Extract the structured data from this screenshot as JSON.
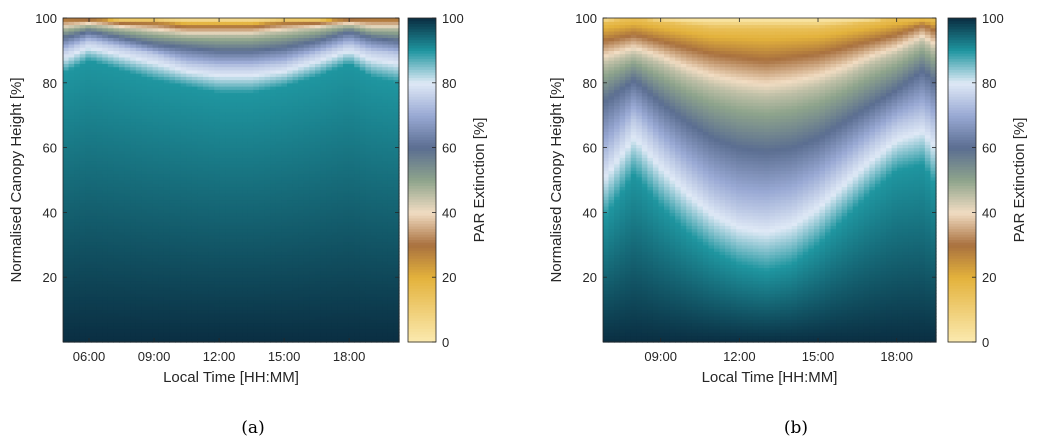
{
  "chart_data": [
    {
      "type": "heatmap",
      "caption": "(a)",
      "xlabel": "Local Time [HH:MM]",
      "ylabel": "Normalised Canopy Height [%]",
      "colorbar_label": "PAR Extinction [%]",
      "xlim_hours": [
        4.8,
        20.3
      ],
      "ylim": [
        0,
        100
      ],
      "clim": [
        0,
        100
      ],
      "x_ticks": [
        "06:00",
        "09:00",
        "12:00",
        "15:00",
        "18:00"
      ],
      "x_tick_hours": [
        6,
        9,
        12,
        15,
        18
      ],
      "y_ticks": [
        20,
        40,
        60,
        80,
        100
      ],
      "cbar_ticks": [
        0,
        20,
        40,
        60,
        80,
        100
      ],
      "isolines": [
        {
          "level": 90,
          "x_hours": [
            4.8,
            6,
            7.5,
            9,
            10.5,
            12,
            13.5,
            15,
            16.5,
            18,
            19,
            20.3
          ],
          "height": [
            83,
            87,
            84,
            81,
            79,
            77,
            77,
            79,
            82,
            86,
            82,
            80
          ]
        },
        {
          "level": 75,
          "x_hours": [
            4.8,
            6,
            7.5,
            9,
            10.5,
            12,
            13.5,
            15,
            16.5,
            18,
            19,
            20.3
          ],
          "height": [
            90,
            93,
            91,
            89,
            86,
            85,
            85,
            86,
            89,
            92,
            90,
            89
          ]
        },
        {
          "level": 60,
          "x_hours": [
            4.8,
            6,
            7.5,
            9,
            10.5,
            12,
            13.5,
            15,
            16.5,
            18,
            19,
            20.3
          ],
          "height": [
            94,
            96,
            94,
            92,
            91,
            90,
            90,
            91,
            93,
            96,
            94,
            93
          ]
        },
        {
          "level": 45,
          "x_hours": [
            4.8,
            6,
            7.5,
            9,
            10.5,
            12,
            13.5,
            15,
            16.5,
            18,
            19,
            20.3
          ],
          "height": [
            97,
            98,
            97,
            96,
            95,
            95,
            95,
            96,
            97,
            98,
            97,
            97
          ]
        },
        {
          "level": 25,
          "x_hours": [
            4.8,
            6,
            7.5,
            9,
            10.5,
            12,
            13.5,
            15,
            16.5,
            18,
            19,
            20.3
          ],
          "height": [
            100,
            100,
            99,
            99,
            98,
            98,
            98,
            99,
            99,
            100,
            100,
            100
          ]
        }
      ]
    },
    {
      "type": "heatmap",
      "caption": "(b)",
      "xlabel": "Local Time [HH:MM]",
      "ylabel": "Normalised Canopy Height [%]",
      "colorbar_label": "PAR Extinction [%]",
      "xlim_hours": [
        6.8,
        19.5
      ],
      "ylim": [
        0,
        100
      ],
      "clim": [
        0,
        100
      ],
      "x_ticks": [
        "09:00",
        "12:00",
        "15:00",
        "18:00"
      ],
      "x_tick_hours": [
        9,
        12,
        15,
        18
      ],
      "y_ticks": [
        20,
        40,
        60,
        80,
        100
      ],
      "cbar_ticks": [
        0,
        20,
        40,
        60,
        80,
        100
      ],
      "isolines": [
        {
          "level": 90,
          "x_hours": [
            6.8,
            8,
            9,
            10,
            11,
            12,
            13,
            14,
            15,
            16,
            17,
            18,
            19,
            19.5
          ],
          "height": [
            38,
            52,
            42,
            34,
            28,
            24,
            22,
            24,
            30,
            38,
            46,
            53,
            55,
            48
          ]
        },
        {
          "level": 75,
          "x_hours": [
            6.8,
            8,
            9,
            10,
            11,
            12,
            13,
            14,
            15,
            16,
            17,
            18,
            19,
            19.5
          ],
          "height": [
            56,
            69,
            60,
            52,
            45,
            41,
            40,
            42,
            47,
            54,
            61,
            67,
            70,
            66
          ]
        },
        {
          "level": 60,
          "x_hours": [
            6.8,
            8,
            9,
            10,
            11,
            12,
            13,
            14,
            15,
            16,
            17,
            18,
            19,
            19.5
          ],
          "height": [
            74,
            81,
            74,
            68,
            63,
            60,
            59,
            60,
            63,
            68,
            73,
            78,
            84,
            80
          ]
        },
        {
          "level": 45,
          "x_hours": [
            6.8,
            8,
            9,
            10,
            11,
            12,
            13,
            14,
            15,
            16,
            17,
            18,
            19,
            19.5
          ],
          "height": [
            86,
            89,
            86,
            82,
            79,
            77,
            76,
            77,
            79,
            82,
            86,
            89,
            93,
            90
          ]
        },
        {
          "level": 30,
          "x_hours": [
            6.8,
            8,
            9,
            10,
            11,
            12,
            13,
            14,
            15,
            16,
            17,
            18,
            19,
            19.5
          ],
          "height": [
            93,
            95,
            93,
            91,
            89,
            88,
            87,
            88,
            89,
            91,
            93,
            95,
            98,
            96
          ]
        },
        {
          "level": 15,
          "x_hours": [
            6.8,
            8,
            9,
            10,
            11,
            12,
            13,
            14,
            15,
            16,
            17,
            18,
            19,
            19.5
          ],
          "height": [
            99,
            100,
            99,
            98,
            97,
            97,
            97,
            97,
            97,
            98,
            99,
            100,
            100,
            100
          ]
        }
      ]
    }
  ],
  "colormap": {
    "stops": [
      0,
      20,
      30,
      40,
      50,
      60,
      70,
      80,
      90,
      100
    ],
    "colors": [
      "#fbeab0",
      "#e3b23c",
      "#a9713f",
      "#f1dcc2",
      "#8ea48c",
      "#5b6e91",
      "#99a9d4",
      "#dfe9f6",
      "#1f96a0",
      "#0a2e42"
    ]
  }
}
